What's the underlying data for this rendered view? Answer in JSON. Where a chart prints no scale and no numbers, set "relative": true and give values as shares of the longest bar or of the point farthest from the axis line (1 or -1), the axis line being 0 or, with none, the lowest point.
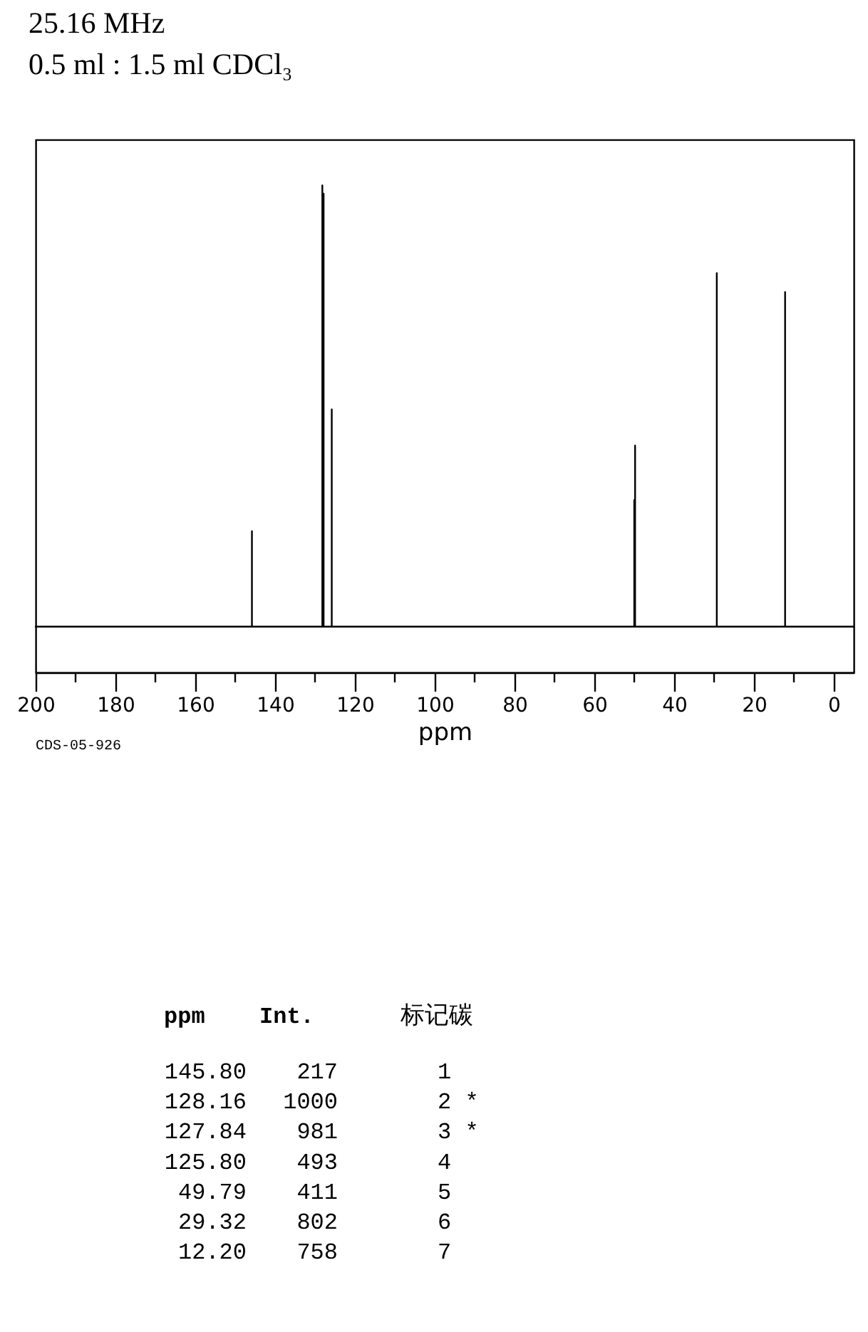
{
  "chart_data": {
    "type": "line",
    "title": "25.16 MHz",
    "subtitle": "0.5 ml : 1.5 ml CDCl₃",
    "xlabel": "ppm",
    "relative": true,
    "x": [
      200,
      145.8,
      145.8,
      145.8,
      128.16,
      128.16,
      128.16,
      127.84,
      127.84,
      127.84,
      125.8,
      125.8,
      125.8,
      50.0,
      50.0,
      50.0,
      49.79,
      49.79,
      49.79,
      29.32,
      29.32,
      29.32,
      12.2,
      12.2,
      12.2,
      -5
    ],
    "values": [
      0.094,
      0.094,
      0.29,
      0.094,
      0.094,
      1.0,
      0.094,
      0.094,
      0.983,
      0.094,
      0.094,
      0.54,
      0.094,
      0.094,
      0.354,
      0.094,
      0.094,
      0.466,
      0.094,
      0.094,
      0.82,
      0.094,
      0.094,
      0.781,
      0.094,
      0.094
    ],
    "color": "#000000",
    "line_style": "solid",
    "xlim": [
      200,
      -5
    ],
    "xticks": [
      200,
      {
        "value": 190,
        "label": null
      },
      180,
      {
        "value": 170,
        "label": null
      },
      160,
      {
        "value": 150,
        "label": null
      },
      140,
      {
        "value": 130,
        "label": null
      },
      120,
      {
        "value": 110,
        "label": null
      },
      100,
      {
        "value": 90,
        "label": null
      },
      80,
      {
        "value": 70,
        "label": null
      },
      60,
      {
        "value": 50,
        "label": null
      },
      40,
      {
        "value": 30,
        "label": null
      },
      20,
      {
        "value": 10,
        "label": null
      },
      0
    ],
    "tick_labels": "x",
    "grid": false,
    "annotations": [
      "CDS-05-926",
      "ppm",
      "Int.",
      "标记碳",
      "145.80",
      "217",
      "1",
      "128.16",
      "1000",
      "2 *",
      "127.84",
      "981",
      "3 *",
      "125.80",
      "493",
      "4",
      "49.79",
      "411",
      "5",
      "29.32",
      "802",
      "6",
      "12.20",
      "758",
      "7"
    ]
  }
}
